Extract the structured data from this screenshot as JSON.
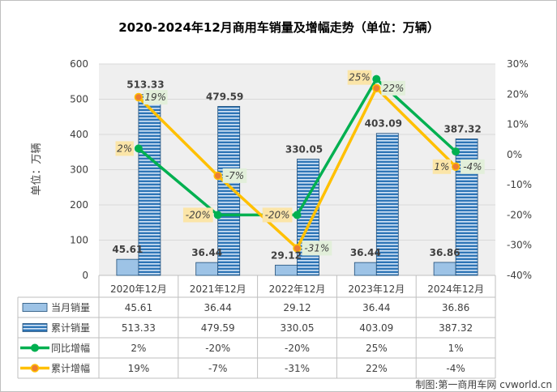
{
  "chart_data": {
    "type": "bar+line",
    "title": "2020-2024年12月商用车销量及增幅走势（单位：万辆）",
    "ylabel": "单位：万辆",
    "ylim": [
      0,
      600
    ],
    "y_ticks": [
      "0",
      "100",
      "200",
      "300",
      "400",
      "500",
      "600"
    ],
    "y2lim": [
      -40,
      30
    ],
    "y2_ticks": [
      "-40%",
      "-30%",
      "-20%",
      "-10%",
      "0%",
      "10%",
      "20%",
      "30%"
    ],
    "categories": [
      "2020年12月",
      "2021年12月",
      "2022年12月",
      "2023年12月",
      "2024年12月"
    ],
    "series": [
      {
        "name": "当月销量",
        "kind": "bar",
        "axis": "left",
        "color": "#9dc3e6",
        "values": [
          45.61,
          36.44,
          29.12,
          36.44,
          36.86
        ],
        "labels": [
          "45.61",
          "36.44",
          "29.12",
          "36.44",
          "36.86"
        ]
      },
      {
        "name": "累计销量",
        "kind": "bar",
        "axis": "left",
        "color": "#2e75b6",
        "values": [
          513.33,
          479.59,
          330.05,
          403.09,
          387.32
        ],
        "labels": [
          "513.33",
          "479.59",
          "330.05",
          "403.09",
          "387.32"
        ]
      },
      {
        "name": "同比增幅",
        "kind": "line",
        "axis": "right",
        "color": "#00b050",
        "values": [
          2,
          -20,
          -20,
          25,
          1
        ],
        "labels": [
          "2%",
          "-20%",
          "-20%",
          "25%",
          "1%"
        ]
      },
      {
        "name": "累计增幅",
        "kind": "line",
        "axis": "right",
        "color": "#ffc000",
        "values": [
          19,
          -7,
          -31,
          22,
          -4
        ],
        "labels": [
          "19%",
          "-7%",
          "-31%",
          "22%",
          "-4%"
        ]
      }
    ]
  },
  "table": {
    "rows": [
      {
        "name": "当月销量",
        "cells": [
          "45.61",
          "36.44",
          "29.12",
          "36.44",
          "36.86"
        ]
      },
      {
        "name": "累计销量",
        "cells": [
          "513.33",
          "479.59",
          "330.05",
          "403.09",
          "387.32"
        ]
      },
      {
        "name": "同比增幅",
        "cells": [
          "2%",
          "-20%",
          "-20%",
          "25%",
          "1%"
        ]
      },
      {
        "name": "累计增幅",
        "cells": [
          "19%",
          "-7%",
          "-31%",
          "22%",
          "-4%"
        ]
      }
    ]
  },
  "credit": "制图:第一商用车网 cvworld.cn"
}
